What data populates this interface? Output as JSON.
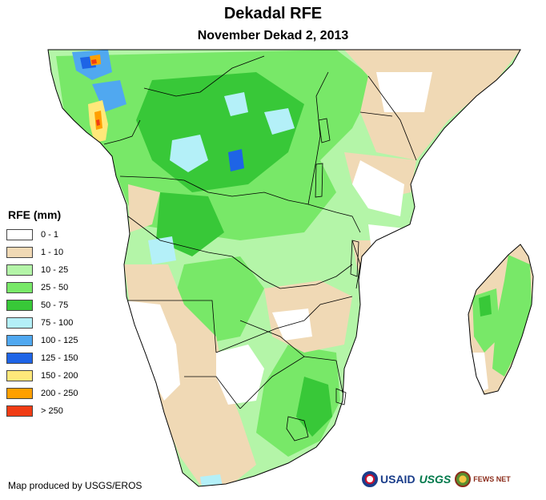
{
  "header": {
    "title": "Dekadal RFE",
    "subtitle": "November Dekad 2, 2013"
  },
  "legend": {
    "title": "RFE (mm)",
    "items": [
      {
        "label": "0 - 1",
        "color": "#ffffff"
      },
      {
        "label": "1 - 10",
        "color": "#f0d9b5"
      },
      {
        "label": "10 - 25",
        "color": "#b4f5a8"
      },
      {
        "label": "25 - 50",
        "color": "#78e868"
      },
      {
        "label": "50 - 75",
        "color": "#38c838"
      },
      {
        "label": "75 - 100",
        "color": "#b4f0f8"
      },
      {
        "label": "100 - 125",
        "color": "#50a8f0"
      },
      {
        "label": "125 - 150",
        "color": "#1e64e6"
      },
      {
        "label": "150 - 200",
        "color": "#ffe87a"
      },
      {
        "label": "200 - 250",
        "color": "#ffa000"
      },
      {
        "label": "> 250",
        "color": "#f03c14"
      }
    ]
  },
  "credit": "Map produced by USGS/EROS",
  "logos": {
    "usaid": "USAID",
    "usgs": "USGS",
    "fews": "FEWS NET",
    "usaid_icon": "usaid-seal-icon",
    "usgs_icon": "usgs-logo-icon",
    "fews_icon": "fews-net-seal-icon"
  }
}
